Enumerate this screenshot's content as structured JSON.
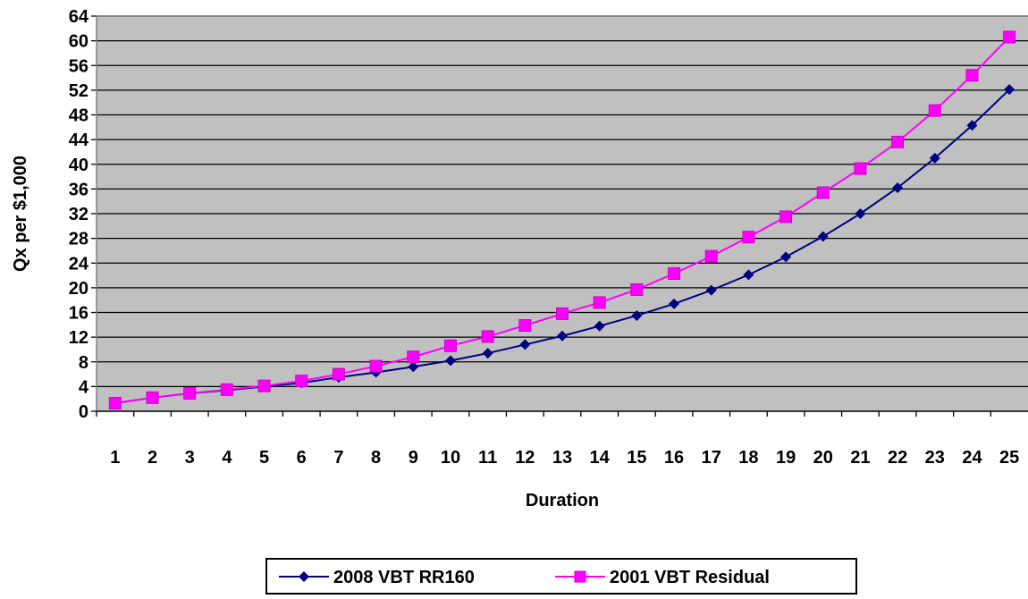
{
  "chart_data": {
    "type": "line",
    "title": "",
    "xlabel": "Duration",
    "ylabel": "Qx per $1,000",
    "categories": [
      "1",
      "2",
      "3",
      "4",
      "5",
      "6",
      "7",
      "8",
      "9",
      "10",
      "11",
      "12",
      "13",
      "14",
      "15",
      "16",
      "17",
      "18",
      "19",
      "20",
      "21",
      "22",
      "23",
      "24",
      "25"
    ],
    "ylim": [
      0,
      64
    ],
    "yticks": [
      "0",
      "4",
      "8",
      "12",
      "16",
      "20",
      "24",
      "28",
      "32",
      "36",
      "40",
      "44",
      "48",
      "52",
      "56",
      "60",
      "64"
    ],
    "grid": true,
    "legend_position": "bottom",
    "plot_background": "#C0C0C0",
    "series": [
      {
        "name": "2008 VBT RR160",
        "color": "#000080",
        "marker": "diamond",
        "values": [
          1.3,
          2.2,
          2.9,
          3.4,
          4.0,
          4.6,
          5.5,
          6.3,
          7.2,
          8.2,
          9.4,
          10.8,
          12.2,
          13.8,
          15.5,
          17.4,
          19.6,
          22.1,
          25.0,
          28.3,
          32.0,
          36.2,
          41.0,
          46.3,
          52.1
        ]
      },
      {
        "name": "2001 VBT Residual",
        "color": "#FF00FF",
        "marker": "square",
        "values": [
          1.3,
          2.2,
          2.9,
          3.5,
          4.1,
          4.9,
          6.0,
          7.3,
          8.8,
          10.6,
          12.1,
          13.9,
          15.8,
          17.6,
          19.7,
          22.3,
          25.1,
          28.2,
          31.5,
          35.4,
          39.3,
          43.6,
          48.7,
          54.4,
          60.6
        ]
      }
    ]
  }
}
